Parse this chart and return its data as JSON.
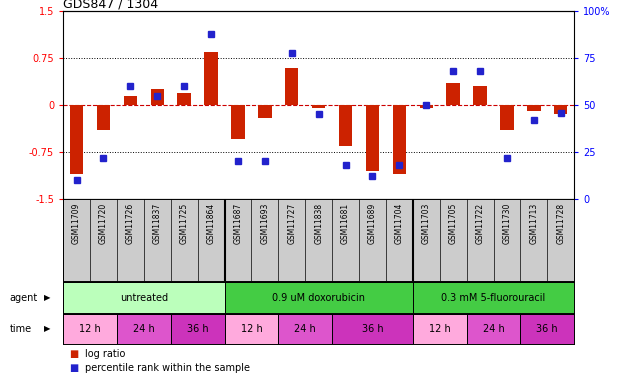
{
  "title": "GDS847 / 1304",
  "samples": [
    "GSM11709",
    "GSM11720",
    "GSM11726",
    "GSM11837",
    "GSM11725",
    "GSM11864",
    "GSM11687",
    "GSM11693",
    "GSM11727",
    "GSM11838",
    "GSM11681",
    "GSM11689",
    "GSM11704",
    "GSM11703",
    "GSM11705",
    "GSM11722",
    "GSM11730",
    "GSM11713",
    "GSM11728"
  ],
  "log_ratio": [
    -1.1,
    -0.4,
    0.15,
    0.25,
    0.2,
    0.85,
    -0.55,
    -0.2,
    0.6,
    -0.05,
    -0.65,
    -1.05,
    -1.1,
    -0.05,
    0.35,
    0.3,
    -0.4,
    -0.1,
    -0.15
  ],
  "pct_rank": [
    10,
    22,
    60,
    55,
    60,
    88,
    20,
    20,
    78,
    45,
    18,
    12,
    18,
    50,
    68,
    68,
    22,
    42,
    46
  ],
  "ylim_left": [
    -1.5,
    1.5
  ],
  "ylim_right": [
    0,
    100
  ],
  "yticks_left": [
    -1.5,
    -0.75,
    0,
    0.75,
    1.5
  ],
  "yticks_right": [
    0,
    25,
    50,
    75,
    100
  ],
  "bar_color": "#cc2200",
  "dot_color": "#2222cc",
  "hline_color": "#cc0000",
  "grid_color": "#000000",
  "agent_groups": [
    {
      "label": "untreated",
      "start": 0,
      "end": 6,
      "color": "#bbffbb"
    },
    {
      "label": "0.9 uM doxorubicin",
      "start": 6,
      "end": 13,
      "color": "#44cc44"
    },
    {
      "label": "0.3 mM 5-fluorouracil",
      "start": 13,
      "end": 19,
      "color": "#44cc44"
    }
  ],
  "time_groups": [
    {
      "label": "12 h",
      "start": 0,
      "end": 2,
      "color": "#ffaadd"
    },
    {
      "label": "24 h",
      "start": 2,
      "end": 4,
      "color": "#dd55cc"
    },
    {
      "label": "36 h",
      "start": 4,
      "end": 6,
      "color": "#cc33bb"
    },
    {
      "label": "12 h",
      "start": 6,
      "end": 8,
      "color": "#ffaadd"
    },
    {
      "label": "24 h",
      "start": 8,
      "end": 10,
      "color": "#dd55cc"
    },
    {
      "label": "36 h",
      "start": 10,
      "end": 13,
      "color": "#cc33bb"
    },
    {
      "label": "12 h",
      "start": 13,
      "end": 15,
      "color": "#ffaadd"
    },
    {
      "label": "24 h",
      "start": 15,
      "end": 17,
      "color": "#dd55cc"
    },
    {
      "label": "36 h",
      "start": 17,
      "end": 19,
      "color": "#cc33bb"
    }
  ],
  "legend_items": [
    {
      "label": "log ratio",
      "color": "#cc2200"
    },
    {
      "label": "percentile rank within the sample",
      "color": "#2222cc"
    }
  ]
}
